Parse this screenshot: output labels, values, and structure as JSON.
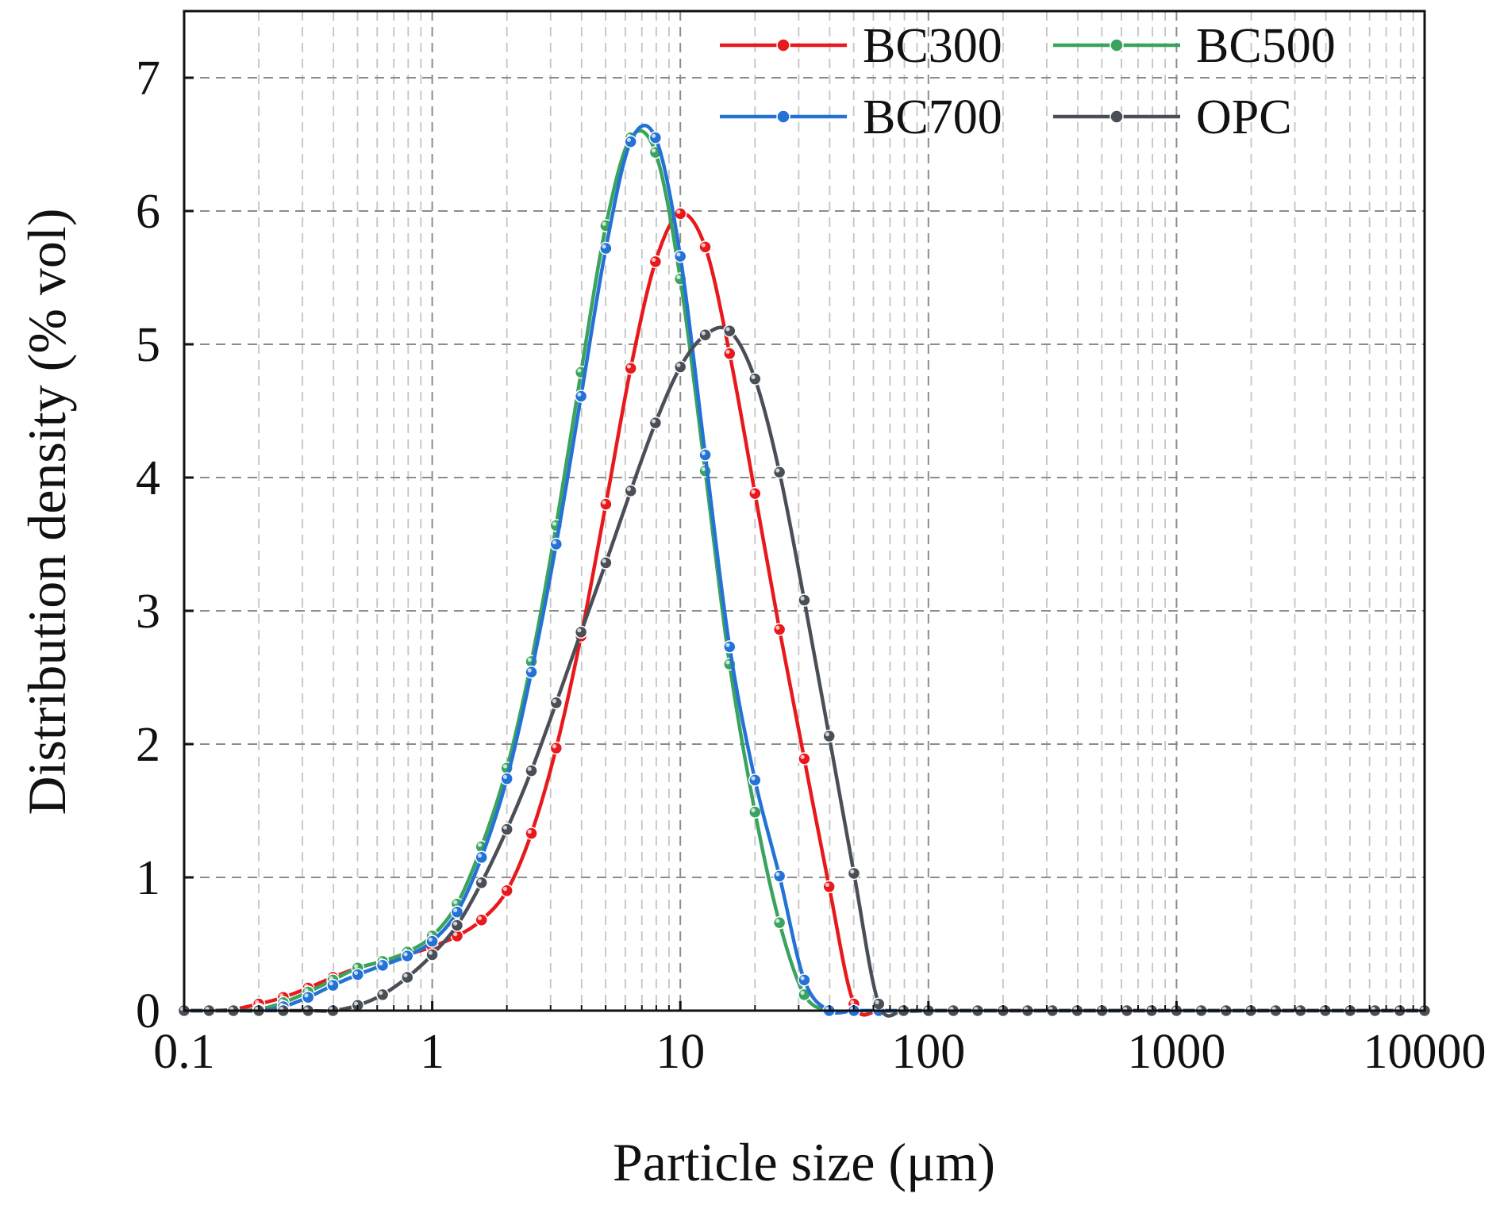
{
  "chart_data": {
    "type": "line",
    "xlabel": "Particle size (μm)",
    "ylabel": "Distribution density (% vol)",
    "xscale": "log",
    "xlim": [
      0.1,
      10000
    ],
    "ylim": [
      0,
      7.5
    ],
    "x_ticks": [
      0.1,
      1,
      10,
      100,
      1000,
      10000
    ],
    "x_tick_labels": [
      "0.1",
      "1",
      "10",
      "100",
      "1000",
      "10000"
    ],
    "y_ticks": [
      0,
      1,
      2,
      3,
      4,
      5,
      6,
      7
    ],
    "y_tick_labels": [
      "0",
      "1",
      "2",
      "3",
      "4",
      "5",
      "6",
      "7"
    ],
    "grid": true,
    "legend_position": "top-right",
    "series": [
      {
        "name": "BC300",
        "color": "#e8191c",
        "x": [
          0.1,
          0.126,
          0.158,
          0.2,
          0.251,
          0.316,
          0.398,
          0.501,
          0.631,
          0.794,
          1.0,
          1.26,
          1.58,
          2.0,
          2.51,
          3.16,
          3.98,
          5.01,
          6.31,
          7.94,
          10.0,
          12.6,
          15.8,
          20.0,
          25.1,
          31.6,
          39.8,
          50.1,
          63.1,
          79.4,
          100,
          126,
          158,
          200,
          251,
          316,
          398,
          501,
          631,
          794,
          1000,
          1259,
          1585,
          1995,
          2512,
          3162,
          3981,
          5012,
          6310,
          7943,
          10000
        ],
        "y": [
          0,
          0,
          0.01,
          0.05,
          0.1,
          0.17,
          0.25,
          0.32,
          0.37,
          0.42,
          0.48,
          0.56,
          0.68,
          0.9,
          1.33,
          1.97,
          2.81,
          3.8,
          4.82,
          5.62,
          5.98,
          5.73,
          4.93,
          3.88,
          2.86,
          1.89,
          0.93,
          0.05,
          0,
          0,
          0,
          0,
          0,
          0,
          0,
          0,
          0,
          0,
          0,
          0,
          0,
          0,
          0,
          0,
          0,
          0,
          0,
          0,
          0,
          0,
          0
        ]
      },
      {
        "name": "BC500",
        "color": "#3aa35e",
        "x": [
          0.1,
          0.126,
          0.158,
          0.2,
          0.251,
          0.316,
          0.398,
          0.501,
          0.631,
          0.794,
          1.0,
          1.26,
          1.58,
          2.0,
          2.51,
          3.16,
          3.98,
          5.01,
          6.31,
          7.94,
          10.0,
          12.6,
          15.8,
          20.0,
          25.1,
          31.6,
          39.8,
          50.1,
          63.1,
          79.4,
          100,
          126,
          158,
          200,
          251,
          316,
          398,
          501,
          631,
          794,
          1000,
          1259,
          1585,
          1995,
          2512,
          3162,
          3981,
          5012,
          6310,
          7943,
          10000
        ],
        "y": [
          0,
          0,
          0,
          0.01,
          0.06,
          0.14,
          0.23,
          0.32,
          0.37,
          0.44,
          0.56,
          0.8,
          1.23,
          1.82,
          2.62,
          3.64,
          4.79,
          5.89,
          6.55,
          6.44,
          5.49,
          4.05,
          2.6,
          1.49,
          0.66,
          0.12,
          0,
          0,
          0,
          0,
          0,
          0,
          0,
          0,
          0,
          0,
          0,
          0,
          0,
          0,
          0,
          0,
          0,
          0,
          0,
          0,
          0,
          0,
          0,
          0,
          0
        ]
      },
      {
        "name": "BC700",
        "color": "#2472d6",
        "x": [
          0.1,
          0.126,
          0.158,
          0.2,
          0.251,
          0.316,
          0.398,
          0.501,
          0.631,
          0.794,
          1.0,
          1.26,
          1.58,
          2.0,
          2.51,
          3.16,
          3.98,
          5.01,
          6.31,
          7.94,
          10.0,
          12.6,
          15.8,
          20.0,
          25.1,
          31.6,
          39.8,
          50.1,
          63.1,
          79.4,
          100,
          126,
          158,
          200,
          251,
          316,
          398,
          501,
          631,
          794,
          1000,
          1259,
          1585,
          1995,
          2512,
          3162,
          3981,
          5012,
          6310,
          7943,
          10000
        ],
        "y": [
          0,
          0,
          0,
          0,
          0.03,
          0.1,
          0.19,
          0.27,
          0.34,
          0.41,
          0.52,
          0.74,
          1.15,
          1.74,
          2.54,
          3.5,
          4.61,
          5.72,
          6.52,
          6.55,
          5.66,
          4.17,
          2.73,
          1.73,
          1.01,
          0.23,
          0,
          0,
          0,
          0,
          0,
          0,
          0,
          0,
          0,
          0,
          0,
          0,
          0,
          0,
          0,
          0,
          0,
          0,
          0,
          0,
          0,
          0,
          0,
          0,
          0
        ]
      },
      {
        "name": "OPC",
        "color": "#4a4f57",
        "x": [
          0.1,
          0.126,
          0.158,
          0.2,
          0.251,
          0.316,
          0.398,
          0.501,
          0.631,
          0.794,
          1.0,
          1.26,
          1.58,
          2.0,
          2.51,
          3.16,
          3.98,
          5.01,
          6.31,
          7.94,
          10.0,
          12.6,
          15.8,
          20.0,
          25.1,
          31.6,
          39.8,
          50.1,
          63.1,
          79.4,
          100,
          126,
          158,
          200,
          251,
          316,
          398,
          501,
          631,
          794,
          1000,
          1259,
          1585,
          1995,
          2512,
          3162,
          3981,
          5012,
          6310,
          7943,
          10000
        ],
        "y": [
          0,
          0,
          0,
          0,
          0,
          0,
          0,
          0.04,
          0.12,
          0.25,
          0.42,
          0.64,
          0.96,
          1.36,
          1.8,
          2.31,
          2.84,
          3.36,
          3.9,
          4.41,
          4.83,
          5.07,
          5.1,
          4.74,
          4.04,
          3.08,
          2.06,
          1.03,
          0.05,
          0,
          0,
          0,
          0,
          0,
          0,
          0,
          0,
          0,
          0,
          0,
          0,
          0,
          0,
          0,
          0,
          0,
          0,
          0,
          0,
          0,
          0
        ]
      }
    ]
  }
}
